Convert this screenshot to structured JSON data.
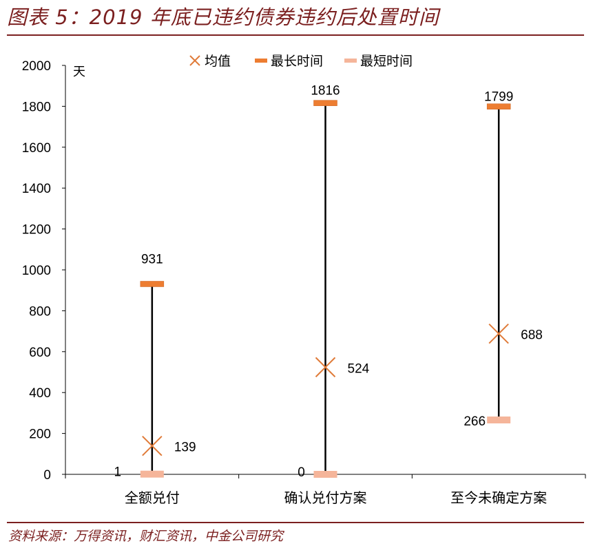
{
  "header": {
    "title": "图表 5：2019 年底已违约债券违约后处置时间"
  },
  "footer": {
    "source": "资料来源：万得资讯，财汇资讯，中金公司研究"
  },
  "chart_data": {
    "type": "range",
    "y_unit_label": "天",
    "ylim": [
      0,
      2000
    ],
    "yticks": [
      0,
      200,
      400,
      600,
      800,
      1000,
      1200,
      1400,
      1600,
      1800,
      2000
    ],
    "categories": [
      "全额兑付",
      "确认兑付方案",
      "至今未确定方案"
    ],
    "legend": {
      "position": "top",
      "entries": [
        "均值",
        "最长时间",
        "最短时间"
      ]
    },
    "series": [
      {
        "name": "均值",
        "values": [
          139,
          524,
          688
        ]
      },
      {
        "name": "最长时间",
        "values": [
          931,
          1816,
          1799
        ]
      },
      {
        "name": "最短时间",
        "values": [
          1,
          0,
          266
        ]
      }
    ],
    "grid": false,
    "colors": {
      "mean": "#e07b39",
      "max": "#ed7d31",
      "min": "#f5b59a",
      "line": "#000000",
      "title": "#7b1f1f"
    }
  }
}
